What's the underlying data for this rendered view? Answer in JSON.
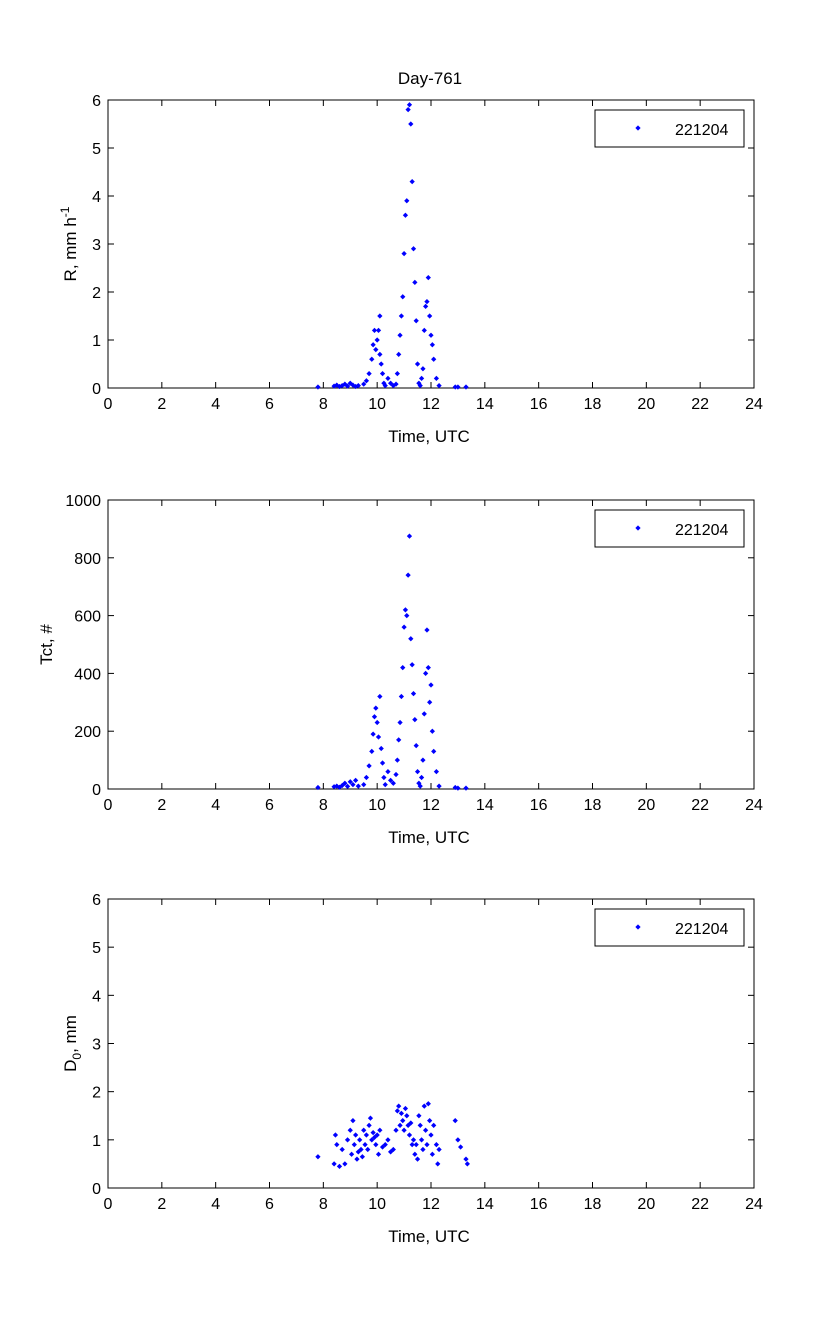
{
  "figure_title": "Day-761",
  "chart_data": [
    {
      "type": "scatter",
      "title": "Day-761",
      "xlabel": "Time, UTC",
      "ylabel": "R, mm h",
      "ylabel_sup": "-1",
      "xlim": [
        0,
        24
      ],
      "ylim": [
        0,
        6
      ],
      "xticks": [
        0,
        2,
        4,
        6,
        8,
        10,
        12,
        14,
        16,
        18,
        20,
        22,
        24
      ],
      "yticks": [
        0,
        1,
        2,
        3,
        4,
        5,
        6
      ],
      "grid": false,
      "legend": "top-right",
      "series": [
        {
          "name": "221204",
          "color": "#0000ff",
          "marker": "point",
          "points": [
            [
              7.8,
              0.02
            ],
            [
              8.4,
              0.04
            ],
            [
              8.5,
              0.06
            ],
            [
              8.6,
              0.03
            ],
            [
              8.7,
              0.05
            ],
            [
              8.8,
              0.08
            ],
            [
              8.9,
              0.04
            ],
            [
              9.0,
              0.1
            ],
            [
              9.1,
              0.06
            ],
            [
              9.2,
              0.03
            ],
            [
              9.3,
              0.05
            ],
            [
              9.5,
              0.08
            ],
            [
              9.6,
              0.15
            ],
            [
              9.7,
              0.3
            ],
            [
              9.8,
              0.6
            ],
            [
              9.85,
              0.9
            ],
            [
              9.9,
              1.2
            ],
            [
              9.95,
              0.8
            ],
            [
              10.0,
              1.0
            ],
            [
              10.05,
              1.2
            ],
            [
              10.1,
              0.7
            ],
            [
              10.1,
              1.5
            ],
            [
              10.15,
              0.5
            ],
            [
              10.2,
              0.3
            ],
            [
              10.25,
              0.1
            ],
            [
              10.3,
              0.05
            ],
            [
              10.4,
              0.2
            ],
            [
              10.5,
              0.1
            ],
            [
              10.6,
              0.05
            ],
            [
              10.7,
              0.08
            ],
            [
              10.75,
              0.3
            ],
            [
              10.8,
              0.7
            ],
            [
              10.85,
              1.1
            ],
            [
              10.9,
              1.5
            ],
            [
              10.95,
              1.9
            ],
            [
              11.0,
              2.8
            ],
            [
              11.05,
              3.6
            ],
            [
              11.1,
              3.9
            ],
            [
              11.15,
              5.8
            ],
            [
              11.2,
              5.9
            ],
            [
              11.25,
              5.5
            ],
            [
              11.3,
              4.3
            ],
            [
              11.35,
              2.9
            ],
            [
              11.4,
              2.2
            ],
            [
              11.45,
              1.4
            ],
            [
              11.5,
              0.5
            ],
            [
              11.55,
              0.1
            ],
            [
              11.6,
              0.05
            ],
            [
              11.65,
              0.2
            ],
            [
              11.7,
              0.4
            ],
            [
              11.75,
              1.2
            ],
            [
              11.8,
              1.7
            ],
            [
              11.85,
              1.8
            ],
            [
              11.9,
              2.3
            ],
            [
              11.95,
              1.5
            ],
            [
              12.0,
              1.1
            ],
            [
              12.05,
              0.9
            ],
            [
              12.1,
              0.6
            ],
            [
              12.2,
              0.2
            ],
            [
              12.3,
              0.05
            ],
            [
              12.9,
              0.02
            ],
            [
              13.0,
              0.02
            ],
            [
              13.3,
              0.02
            ]
          ]
        }
      ]
    },
    {
      "type": "scatter",
      "title": "",
      "xlabel": "Time, UTC",
      "ylabel": "Tct, #",
      "xlim": [
        0,
        24
      ],
      "ylim": [
        0,
        1000
      ],
      "xticks": [
        0,
        2,
        4,
        6,
        8,
        10,
        12,
        14,
        16,
        18,
        20,
        22,
        24
      ],
      "yticks": [
        0,
        200,
        400,
        600,
        800,
        1000
      ],
      "grid": false,
      "legend": "top-right",
      "series": [
        {
          "name": "221204",
          "color": "#0000ff",
          "marker": "point",
          "points": [
            [
              7.8,
              5
            ],
            [
              8.4,
              8
            ],
            [
              8.5,
              10
            ],
            [
              8.6,
              6
            ],
            [
              8.7,
              12
            ],
            [
              8.8,
              20
            ],
            [
              8.9,
              9
            ],
            [
              9.0,
              25
            ],
            [
              9.1,
              15
            ],
            [
              9.2,
              30
            ],
            [
              9.3,
              10
            ],
            [
              9.5,
              15
            ],
            [
              9.6,
              40
            ],
            [
              9.7,
              80
            ],
            [
              9.8,
              130
            ],
            [
              9.85,
              190
            ],
            [
              9.9,
              250
            ],
            [
              9.95,
              280
            ],
            [
              10.0,
              230
            ],
            [
              10.05,
              180
            ],
            [
              10.1,
              320
            ],
            [
              10.15,
              140
            ],
            [
              10.2,
              90
            ],
            [
              10.25,
              40
            ],
            [
              10.3,
              15
            ],
            [
              10.4,
              60
            ],
            [
              10.5,
              30
            ],
            [
              10.6,
              20
            ],
            [
              10.7,
              50
            ],
            [
              10.75,
              100
            ],
            [
              10.8,
              170
            ],
            [
              10.85,
              230
            ],
            [
              10.9,
              320
            ],
            [
              10.95,
              420
            ],
            [
              11.0,
              560
            ],
            [
              11.05,
              620
            ],
            [
              11.1,
              600
            ],
            [
              11.15,
              740
            ],
            [
              11.2,
              875
            ],
            [
              11.25,
              520
            ],
            [
              11.3,
              430
            ],
            [
              11.35,
              330
            ],
            [
              11.4,
              240
            ],
            [
              11.45,
              150
            ],
            [
              11.5,
              60
            ],
            [
              11.55,
              20
            ],
            [
              11.6,
              10
            ],
            [
              11.65,
              40
            ],
            [
              11.7,
              100
            ],
            [
              11.75,
              260
            ],
            [
              11.8,
              400
            ],
            [
              11.85,
              550
            ],
            [
              11.9,
              420
            ],
            [
              11.95,
              300
            ],
            [
              12.0,
              360
            ],
            [
              12.05,
              200
            ],
            [
              12.1,
              130
            ],
            [
              12.2,
              60
            ],
            [
              12.3,
              10
            ],
            [
              12.9,
              5
            ],
            [
              13.0,
              3
            ],
            [
              13.3,
              3
            ]
          ]
        }
      ]
    },
    {
      "type": "scatter",
      "title": "",
      "xlabel": "Time, UTC",
      "ylabel": "D",
      "ylabel_sub": "0",
      "ylabel_suffix": ", mm",
      "xlim": [
        0,
        24
      ],
      "ylim": [
        0,
        6
      ],
      "xticks": [
        0,
        2,
        4,
        6,
        8,
        10,
        12,
        14,
        16,
        18,
        20,
        22,
        24
      ],
      "yticks": [
        0,
        1,
        2,
        3,
        4,
        5,
        6
      ],
      "grid": false,
      "legend": "top-right",
      "series": [
        {
          "name": "221204",
          "color": "#0000ff",
          "marker": "point",
          "points": [
            [
              7.8,
              0.65
            ],
            [
              8.4,
              0.5
            ],
            [
              8.45,
              1.1
            ],
            [
              8.5,
              0.9
            ],
            [
              8.6,
              0.45
            ],
            [
              8.7,
              0.8
            ],
            [
              8.8,
              0.5
            ],
            [
              8.9,
              1.0
            ],
            [
              9.0,
              1.2
            ],
            [
              9.05,
              0.7
            ],
            [
              9.1,
              1.4
            ],
            [
              9.15,
              0.9
            ],
            [
              9.2,
              1.1
            ],
            [
              9.25,
              0.6
            ],
            [
              9.3,
              0.75
            ],
            [
              9.35,
              1.0
            ],
            [
              9.4,
              0.8
            ],
            [
              9.45,
              0.65
            ],
            [
              9.5,
              1.2
            ],
            [
              9.55,
              0.9
            ],
            [
              9.6,
              1.1
            ],
            [
              9.65,
              0.8
            ],
            [
              9.7,
              1.3
            ],
            [
              9.75,
              1.45
            ],
            [
              9.8,
              1.0
            ],
            [
              9.85,
              1.15
            ],
            [
              9.9,
              1.05
            ],
            [
              9.95,
              0.9
            ],
            [
              10.0,
              1.1
            ],
            [
              10.05,
              0.7
            ],
            [
              10.1,
              1.2
            ],
            [
              10.2,
              0.85
            ],
            [
              10.3,
              0.9
            ],
            [
              10.4,
              1.0
            ],
            [
              10.5,
              0.75
            ],
            [
              10.6,
              0.8
            ],
            [
              10.7,
              1.2
            ],
            [
              10.75,
              1.6
            ],
            [
              10.8,
              1.7
            ],
            [
              10.85,
              1.3
            ],
            [
              10.9,
              1.55
            ],
            [
              10.95,
              1.4
            ],
            [
              11.0,
              1.2
            ],
            [
              11.05,
              1.65
            ],
            [
              11.1,
              1.5
            ],
            [
              11.15,
              1.3
            ],
            [
              11.2,
              1.1
            ],
            [
              11.25,
              1.35
            ],
            [
              11.3,
              0.9
            ],
            [
              11.35,
              1.0
            ],
            [
              11.4,
              0.7
            ],
            [
              11.45,
              0.9
            ],
            [
              11.5,
              0.6
            ],
            [
              11.55,
              1.5
            ],
            [
              11.6,
              1.3
            ],
            [
              11.65,
              1.0
            ],
            [
              11.7,
              0.8
            ],
            [
              11.75,
              1.7
            ],
            [
              11.8,
              1.2
            ],
            [
              11.85,
              0.9
            ],
            [
              11.9,
              1.75
            ],
            [
              11.95,
              1.4
            ],
            [
              12.0,
              1.1
            ],
            [
              12.05,
              0.7
            ],
            [
              12.1,
              1.3
            ],
            [
              12.2,
              0.9
            ],
            [
              12.25,
              0.5
            ],
            [
              12.3,
              0.8
            ],
            [
              12.9,
              1.4
            ],
            [
              13.0,
              1.0
            ],
            [
              13.1,
              0.85
            ],
            [
              13.3,
              0.6
            ],
            [
              13.35,
              0.5
            ]
          ]
        }
      ]
    }
  ]
}
